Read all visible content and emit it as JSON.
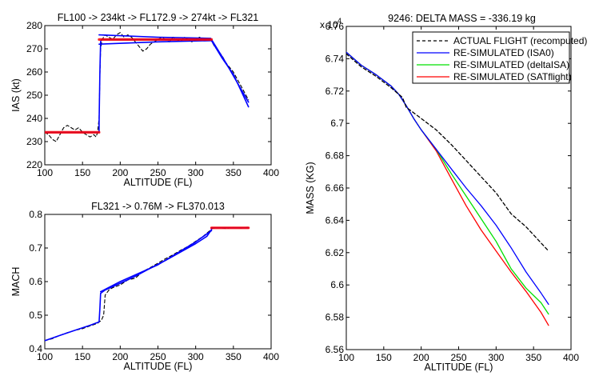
{
  "colors": {
    "actual": "#000000",
    "isa0": "#0000ff",
    "deltaisa": "#00e000",
    "satflight": "#ff0000"
  },
  "chart_data": [
    {
      "id": "ias",
      "type": "line",
      "title": "FL100 -> 234kt -> FL172.9 -> 274kt -> FL321",
      "xlabel": "ALTITUDE (FL)",
      "ylabel": "IAS (kt)",
      "xlim": [
        100,
        400
      ],
      "ylim": [
        220,
        280
      ],
      "xticks": [
        100,
        150,
        200,
        250,
        300,
        350,
        400
      ],
      "yticks": [
        220,
        230,
        240,
        250,
        260,
        270,
        280
      ],
      "grid": false,
      "series": [
        {
          "key": "actual",
          "style": "dashed",
          "points": [
            [
              100,
              234
            ],
            [
              105,
              233
            ],
            [
              110,
              231
            ],
            [
              115,
              230
            ],
            [
              120,
              233
            ],
            [
              125,
              236
            ],
            [
              130,
              237
            ],
            [
              135,
              236
            ],
            [
              140,
              235
            ],
            [
              145,
              236
            ],
            [
              150,
              234
            ],
            [
              155,
              233
            ],
            [
              160,
              232
            ],
            [
              165,
              233
            ],
            [
              168,
              232
            ],
            [
              170,
              234
            ],
            [
              172,
              240
            ],
            [
              173,
              258
            ],
            [
              174,
              270
            ],
            [
              176,
              274
            ],
            [
              180,
              276
            ],
            [
              185,
              275
            ],
            [
              190,
              274
            ],
            [
              195,
              276
            ],
            [
              200,
              277
            ],
            [
              205,
              275
            ],
            [
              210,
              276
            ],
            [
              215,
              275
            ],
            [
              220,
              273
            ],
            [
              225,
              271
            ],
            [
              230,
              269
            ],
            [
              235,
              270
            ],
            [
              240,
              272
            ],
            [
              245,
              273
            ],
            [
              250,
              274
            ],
            [
              255,
              275
            ],
            [
              260,
              274
            ],
            [
              265,
              273
            ],
            [
              270,
              275
            ],
            [
              275,
              274
            ],
            [
              280,
              273
            ],
            [
              285,
              275
            ],
            [
              290,
              274
            ],
            [
              295,
              273
            ],
            [
              300,
              274
            ],
            [
              305,
              275
            ],
            [
              310,
              274
            ],
            [
              315,
              274
            ],
            [
              320,
              274
            ],
            [
              325,
              271
            ],
            [
              330,
              269
            ],
            [
              335,
              267
            ],
            [
              340,
              264
            ],
            [
              345,
              262
            ],
            [
              350,
              260
            ],
            [
              355,
              257
            ],
            [
              360,
              254
            ],
            [
              365,
              251
            ],
            [
              370,
              248
            ]
          ]
        },
        {
          "key": "isa0",
          "style": "solid",
          "points": [
            [
              100,
              234
            ],
            [
              172,
              234
            ],
            [
              172,
              238
            ],
            [
              173,
              260
            ],
            [
              174,
              273
            ],
            [
              175,
              274
            ],
            [
              320,
              274
            ],
            [
              322,
              273
            ],
            [
              335,
              266
            ],
            [
              350,
              259
            ],
            [
              360,
              252
            ],
            [
              370,
              245
            ]
          ]
        },
        {
          "key": "isa0",
          "style": "solid",
          "points": [
            [
              172,
              276
            ],
            [
              250,
              275
            ],
            [
              320,
              274.5
            ]
          ]
        },
        {
          "key": "isa0",
          "style": "solid",
          "points": [
            [
              172,
              272
            ],
            [
              250,
              273
            ],
            [
              320,
              273.5
            ]
          ]
        },
        {
          "key": "isa0",
          "style": "solid",
          "points": [
            [
              321,
              274
            ],
            [
              340,
              264
            ],
            [
              370,
              247
            ]
          ]
        },
        {
          "key": "satflight",
          "style": "solid",
          "points": [
            [
              100,
              234
            ],
            [
              172,
              234
            ]
          ]
        },
        {
          "key": "satflight",
          "style": "solid",
          "points": [
            [
              172,
              274
            ],
            [
              321,
              274
            ]
          ]
        }
      ]
    },
    {
      "id": "mach",
      "type": "line",
      "title": "FL321 -> 0.76M -> FL370.013",
      "xlabel": "ALTITUDE (FL)",
      "ylabel": "MACH",
      "xlim": [
        100,
        400
      ],
      "ylim": [
        0.4,
        0.8
      ],
      "xticks": [
        100,
        150,
        200,
        250,
        300,
        350,
        400
      ],
      "yticks": [
        0.4,
        0.5,
        0.6,
        0.7,
        0.8
      ],
      "grid": false,
      "series": [
        {
          "key": "actual",
          "style": "dashed",
          "points": [
            [
              100,
              0.424
            ],
            [
              110,
              0.43
            ],
            [
              120,
              0.44
            ],
            [
              130,
              0.448
            ],
            [
              140,
              0.455
            ],
            [
              150,
              0.46
            ],
            [
              160,
              0.468
            ],
            [
              170,
              0.476
            ],
            [
              175,
              0.485
            ],
            [
              178,
              0.5
            ],
            [
              180,
              0.56
            ],
            [
              185,
              0.575
            ],
            [
              190,
              0.582
            ],
            [
              200,
              0.59
            ],
            [
              210,
              0.605
            ],
            [
              220,
              0.61
            ],
            [
              230,
              0.63
            ],
            [
              240,
              0.642
            ],
            [
              250,
              0.655
            ],
            [
              260,
              0.668
            ],
            [
              270,
              0.68
            ],
            [
              280,
              0.693
            ],
            [
              290,
              0.705
            ],
            [
              300,
              0.72
            ],
            [
              310,
              0.735
            ],
            [
              318,
              0.75
            ],
            [
              322,
              0.758
            ],
            [
              330,
              0.76
            ],
            [
              340,
              0.758
            ],
            [
              350,
              0.761
            ],
            [
              360,
              0.759
            ],
            [
              370,
              0.762
            ]
          ]
        },
        {
          "key": "isa0",
          "style": "solid",
          "points": [
            [
              100,
              0.424
            ],
            [
              120,
              0.44
            ],
            [
              140,
              0.455
            ],
            [
              160,
              0.47
            ],
            [
              172,
              0.48
            ],
            [
              173,
              0.52
            ],
            [
              174,
              0.565
            ],
            [
              180,
              0.575
            ],
            [
              200,
              0.595
            ],
            [
              220,
              0.616
            ],
            [
              240,
              0.64
            ],
            [
              260,
              0.663
            ],
            [
              280,
              0.688
            ],
            [
              300,
              0.713
            ],
            [
              315,
              0.735
            ],
            [
              321,
              0.755
            ],
            [
              321,
              0.76
            ],
            [
              370,
              0.76
            ]
          ]
        },
        {
          "key": "isa0",
          "style": "solid",
          "points": [
            [
              174,
              0.57
            ],
            [
              200,
              0.6
            ],
            [
              250,
              0.65
            ],
            [
              300,
              0.718
            ],
            [
              321,
              0.752
            ]
          ]
        },
        {
          "key": "satflight",
          "style": "solid",
          "points": [
            [
              321,
              0.76
            ],
            [
              370,
              0.76
            ]
          ]
        }
      ]
    },
    {
      "id": "mass",
      "type": "line",
      "title": "9246: DELTA MASS = -336.19 kg",
      "xlabel": "ALTITUDE (FL)",
      "ylabel": "MASS (KG)",
      "yscale_label": "x 10",
      "yscale_exp": "4",
      "xlim": [
        100,
        400
      ],
      "ylim": [
        6.56,
        6.76
      ],
      "xticks": [
        100,
        150,
        200,
        250,
        300,
        350,
        400
      ],
      "yticks": [
        "6.56",
        "6.58",
        "6.6",
        "6.62",
        "6.64",
        "6.66",
        "6.68",
        "6.7",
        "6.72",
        "6.74",
        "6.76"
      ],
      "grid": false,
      "legend_position": "top-right",
      "legend": [
        {
          "key": "actual",
          "style": "dashed",
          "label": "ACTUAL FLIGHT (recomputed)"
        },
        {
          "key": "isa0",
          "style": "solid",
          "label": "RE-SIMULATED (ISA0)"
        },
        {
          "key": "deltaisa",
          "style": "solid",
          "label": "RE-SIMULATED (deltaISA)"
        },
        {
          "key": "satflight",
          "style": "solid",
          "label": "RE-SIMULATED (SATflight)"
        }
      ],
      "series": [
        {
          "key": "actual",
          "style": "dashed",
          "points": [
            [
              100,
              6.743
            ],
            [
              120,
              6.735
            ],
            [
              140,
              6.729
            ],
            [
              160,
              6.722
            ],
            [
              175,
              6.716
            ],
            [
              180,
              6.71
            ],
            [
              200,
              6.703
            ],
            [
              220,
              6.696
            ],
            [
              240,
              6.687
            ],
            [
              260,
              6.677
            ],
            [
              280,
              6.667
            ],
            [
              300,
              6.657
            ],
            [
              320,
              6.644
            ],
            [
              340,
              6.636
            ],
            [
              360,
              6.626
            ],
            [
              370,
              6.621
            ]
          ]
        },
        {
          "key": "isa0",
          "style": "solid",
          "points": [
            [
              100,
              6.744
            ],
            [
              120,
              6.736
            ],
            [
              140,
              6.73
            ],
            [
              160,
              6.723
            ],
            [
              170,
              6.718
            ],
            [
              180,
              6.711
            ],
            [
              190,
              6.703
            ],
            [
              200,
              6.696
            ],
            [
              220,
              6.684
            ],
            [
              240,
              6.672
            ],
            [
              260,
              6.66
            ],
            [
              280,
              6.649
            ],
            [
              300,
              6.637
            ],
            [
              320,
              6.623
            ],
            [
              340,
              6.608
            ],
            [
              360,
              6.595
            ],
            [
              370,
              6.588
            ]
          ]
        },
        {
          "key": "deltaisa",
          "style": "solid",
          "points": [
            [
              100,
              6.744
            ],
            [
              120,
              6.736
            ],
            [
              140,
              6.73
            ],
            [
              160,
              6.723
            ],
            [
              170,
              6.718
            ],
            [
              180,
              6.711
            ],
            [
              190,
              6.703
            ],
            [
              200,
              6.696
            ],
            [
              220,
              6.684
            ],
            [
              240,
              6.669
            ],
            [
              260,
              6.655
            ],
            [
              280,
              6.641
            ],
            [
              300,
              6.627
            ],
            [
              320,
              6.61
            ],
            [
              340,
              6.598
            ],
            [
              360,
              6.589
            ],
            [
              370,
              6.582
            ]
          ]
        },
        {
          "key": "satflight",
          "style": "solid",
          "points": [
            [
              100,
              6.744
            ],
            [
              120,
              6.736
            ],
            [
              140,
              6.73
            ],
            [
              160,
              6.723
            ],
            [
              170,
              6.718
            ],
            [
              180,
              6.711
            ],
            [
              190,
              6.703
            ],
            [
              200,
              6.696
            ],
            [
              220,
              6.683
            ],
            [
              240,
              6.666
            ],
            [
              260,
              6.649
            ],
            [
              280,
              6.634
            ],
            [
              300,
              6.621
            ],
            [
              320,
              6.608
            ],
            [
              340,
              6.596
            ],
            [
              360,
              6.583
            ],
            [
              370,
              6.575
            ]
          ]
        }
      ]
    }
  ]
}
